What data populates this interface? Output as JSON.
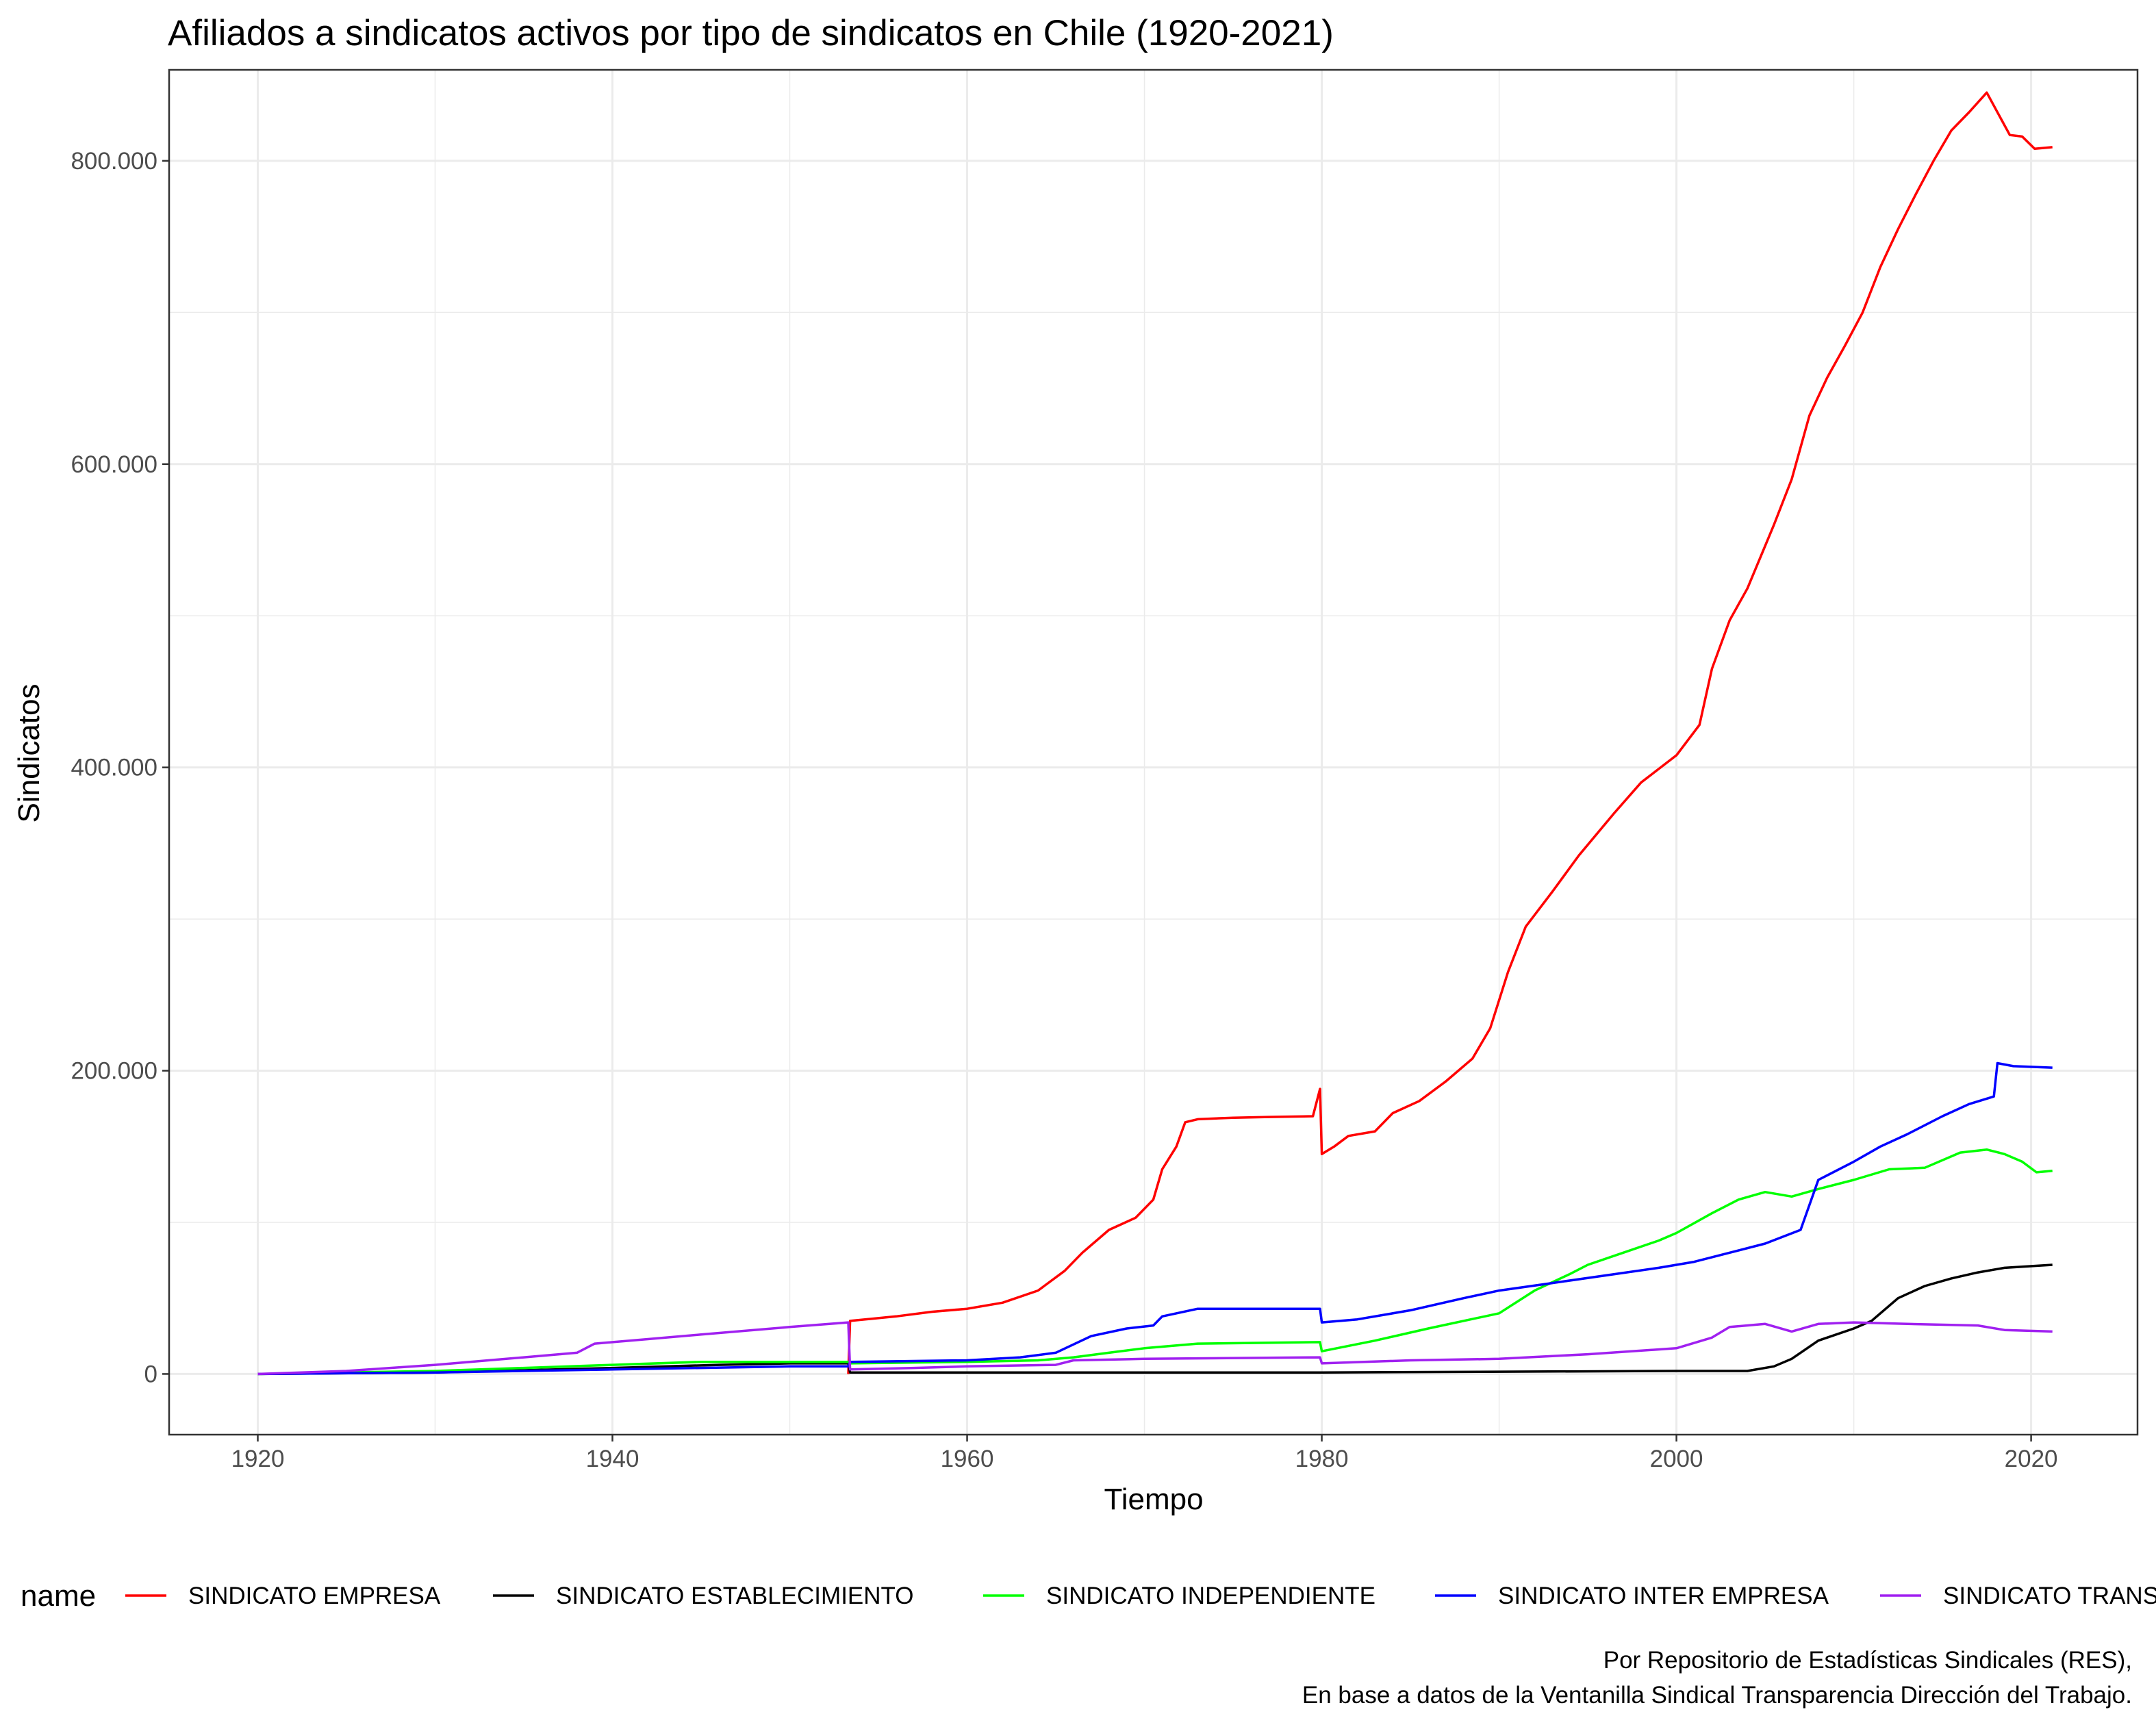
{
  "chart_data": {
    "type": "line",
    "title": "Afiliados a sindicatos activos por tipo de sindicatos en Chile (1920-2021)",
    "xlabel": "Tiempo",
    "ylabel": "Sindicatos",
    "xlim": [
      1915,
      2026
    ],
    "ylim": [
      -40000,
      860000
    ],
    "x_ticks": [
      1920,
      1940,
      1960,
      1980,
      2000,
      2020
    ],
    "x_tick_labels": [
      "1920",
      "1940",
      "1960",
      "1980",
      "2000",
      "2020"
    ],
    "y_ticks": [
      0,
      200000,
      400000,
      600000,
      800000
    ],
    "y_tick_labels": [
      "0",
      "200.000",
      "400.000",
      "600.000",
      "800.000"
    ],
    "grid": true,
    "legend_title": "name",
    "legend_position": "bottom",
    "caption_lines": [
      "Por Repositorio de Estadísticas Sindicales (RES),",
      "En base a datos de la Ventanilla Sindical Transparencia Dirección del Trabajo."
    ],
    "series": [
      {
        "name": "SINDICATO EMPRESA",
        "color": "#ff0000",
        "points": [
          [
            1953.3,
            0
          ],
          [
            1953.4,
            35000
          ],
          [
            1956,
            38000
          ],
          [
            1958,
            41000
          ],
          [
            1960,
            43000
          ],
          [
            1962,
            47000
          ],
          [
            1964,
            55000
          ],
          [
            1965.5,
            68000
          ],
          [
            1966.5,
            80000
          ],
          [
            1968,
            95000
          ],
          [
            1969.5,
            103000
          ],
          [
            1970.5,
            115000
          ],
          [
            1971,
            135000
          ],
          [
            1971.8,
            150000
          ],
          [
            1972.3,
            166000
          ],
          [
            1973,
            168000
          ],
          [
            1975,
            169000
          ],
          [
            1977,
            169500
          ],
          [
            1979.5,
            170000
          ],
          [
            1979.9,
            188000
          ],
          [
            1980,
            145000
          ],
          [
            1980.7,
            150000
          ],
          [
            1981.5,
            157000
          ],
          [
            1983,
            160000
          ],
          [
            1984,
            172000
          ],
          [
            1985.5,
            180000
          ],
          [
            1987,
            193000
          ],
          [
            1988.5,
            208000
          ],
          [
            1989.5,
            228000
          ],
          [
            1990.5,
            265000
          ],
          [
            1991.5,
            295000
          ],
          [
            1993,
            318000
          ],
          [
            1994.5,
            342000
          ],
          [
            1996.5,
            370000
          ],
          [
            1998,
            390000
          ],
          [
            2000,
            408000
          ],
          [
            2001.3,
            428000
          ],
          [
            2002,
            465000
          ],
          [
            2003,
            497000
          ],
          [
            2004,
            518000
          ],
          [
            2005.5,
            560000
          ],
          [
            2006.5,
            590000
          ],
          [
            2007.5,
            632000
          ],
          [
            2008.5,
            657000
          ],
          [
            2009.5,
            678000
          ],
          [
            2010.5,
            700000
          ],
          [
            2011.5,
            730000
          ],
          [
            2012.5,
            755000
          ],
          [
            2013.5,
            778000
          ],
          [
            2014.5,
            800000
          ],
          [
            2015.5,
            820000
          ],
          [
            2016.5,
            832000
          ],
          [
            2017.5,
            845000
          ],
          [
            2018.8,
            817000
          ],
          [
            2019.5,
            816000
          ],
          [
            2020.2,
            808000
          ],
          [
            2021.2,
            809000
          ]
        ]
      },
      {
        "name": "SINDICATO ESTABLECIMIENTO",
        "color": "#000000",
        "points": [
          [
            1920,
            0
          ],
          [
            1930,
            1000
          ],
          [
            1940,
            4000
          ],
          [
            1946,
            6000
          ],
          [
            1950,
            7000
          ],
          [
            1953.3,
            7000
          ],
          [
            1953.4,
            1000
          ],
          [
            1960,
            1000
          ],
          [
            1980,
            1000
          ],
          [
            1990,
            1500
          ],
          [
            2000,
            2000
          ],
          [
            2004,
            2000
          ],
          [
            2005.5,
            5000
          ],
          [
            2006.5,
            10000
          ],
          [
            2008,
            22000
          ],
          [
            2010,
            30000
          ],
          [
            2011,
            35000
          ],
          [
            2012.5,
            50000
          ],
          [
            2014,
            58000
          ],
          [
            2015.5,
            63000
          ],
          [
            2017,
            67000
          ],
          [
            2018.5,
            70000
          ],
          [
            2021.2,
            72000
          ]
        ]
      },
      {
        "name": "SINDICATO INDEPENDIENTE",
        "color": "#00ff00",
        "points": [
          [
            1920,
            0
          ],
          [
            1930,
            2000
          ],
          [
            1935,
            4000
          ],
          [
            1940,
            6000
          ],
          [
            1945,
            8000
          ],
          [
            1953.3,
            8000
          ],
          [
            1953.4,
            7000
          ],
          [
            1960,
            8000
          ],
          [
            1964,
            9000
          ],
          [
            1966,
            11000
          ],
          [
            1968,
            14000
          ],
          [
            1970,
            17000
          ],
          [
            1973,
            20000
          ],
          [
            1979.9,
            21000
          ],
          [
            1980,
            15000
          ],
          [
            1983,
            22000
          ],
          [
            1986,
            30000
          ],
          [
            1990,
            40000
          ],
          [
            1992,
            55000
          ],
          [
            1994,
            66000
          ],
          [
            1995,
            72000
          ],
          [
            1997,
            80000
          ],
          [
            1999,
            88000
          ],
          [
            2000,
            93000
          ],
          [
            2002,
            106000
          ],
          [
            2003.5,
            115000
          ],
          [
            2005,
            120000
          ],
          [
            2006.5,
            117000
          ],
          [
            2008,
            122000
          ],
          [
            2010,
            128000
          ],
          [
            2012,
            135000
          ],
          [
            2014,
            136000
          ],
          [
            2016,
            146000
          ],
          [
            2017.5,
            148000
          ],
          [
            2018.5,
            145000
          ],
          [
            2019.5,
            140000
          ],
          [
            2020.3,
            133000
          ],
          [
            2021.2,
            134000
          ]
        ]
      },
      {
        "name": "SINDICATO INTER EMPRESA",
        "color": "#0000ff",
        "points": [
          [
            1920,
            0
          ],
          [
            1930,
            1000
          ],
          [
            1940,
            3000
          ],
          [
            1950,
            5000
          ],
          [
            1953.3,
            5000
          ],
          [
            1953.4,
            8000
          ],
          [
            1960,
            9000
          ],
          [
            1963,
            11000
          ],
          [
            1965,
            14000
          ],
          [
            1967,
            25000
          ],
          [
            1969,
            30000
          ],
          [
            1970.5,
            32000
          ],
          [
            1971,
            38000
          ],
          [
            1973,
            43000
          ],
          [
            1979.9,
            43000
          ],
          [
            1980,
            34000
          ],
          [
            1982,
            36000
          ],
          [
            1985,
            42000
          ],
          [
            1988,
            50000
          ],
          [
            1990,
            55000
          ],
          [
            1993,
            60000
          ],
          [
            1996,
            65000
          ],
          [
            1999,
            70000
          ],
          [
            2001,
            74000
          ],
          [
            2003,
            80000
          ],
          [
            2005,
            86000
          ],
          [
            2007,
            95000
          ],
          [
            2008,
            128000
          ],
          [
            2010,
            140000
          ],
          [
            2011.5,
            150000
          ],
          [
            2013,
            158000
          ],
          [
            2015,
            170000
          ],
          [
            2016.5,
            178000
          ],
          [
            2017.9,
            183000
          ],
          [
            2018.1,
            205000
          ],
          [
            2019,
            203000
          ],
          [
            2021.2,
            202000
          ]
        ]
      },
      {
        "name": "SINDICATO TRANSITORIO",
        "color": "#a020f0",
        "points": [
          [
            1920,
            0
          ],
          [
            1925,
            2000
          ],
          [
            1930,
            6000
          ],
          [
            1935,
            11000
          ],
          [
            1938,
            14000
          ],
          [
            1939,
            20000
          ],
          [
            1942,
            23000
          ],
          [
            1945,
            26000
          ],
          [
            1950,
            31000
          ],
          [
            1953.3,
            34000
          ],
          [
            1953.4,
            3000
          ],
          [
            1957,
            4000
          ],
          [
            1960,
            5000
          ],
          [
            1965,
            6000
          ],
          [
            1966,
            9000
          ],
          [
            1970,
            10000
          ],
          [
            1979.9,
            11000
          ],
          [
            1980,
            7000
          ],
          [
            1985,
            9000
          ],
          [
            1990,
            10000
          ],
          [
            1995,
            13000
          ],
          [
            2000,
            17000
          ],
          [
            2002,
            24000
          ],
          [
            2003,
            31000
          ],
          [
            2005,
            33000
          ],
          [
            2006.5,
            28000
          ],
          [
            2008,
            33000
          ],
          [
            2010,
            34000
          ],
          [
            2013,
            33000
          ],
          [
            2017,
            32000
          ],
          [
            2018.5,
            29000
          ],
          [
            2021.2,
            28000
          ]
        ]
      }
    ]
  }
}
